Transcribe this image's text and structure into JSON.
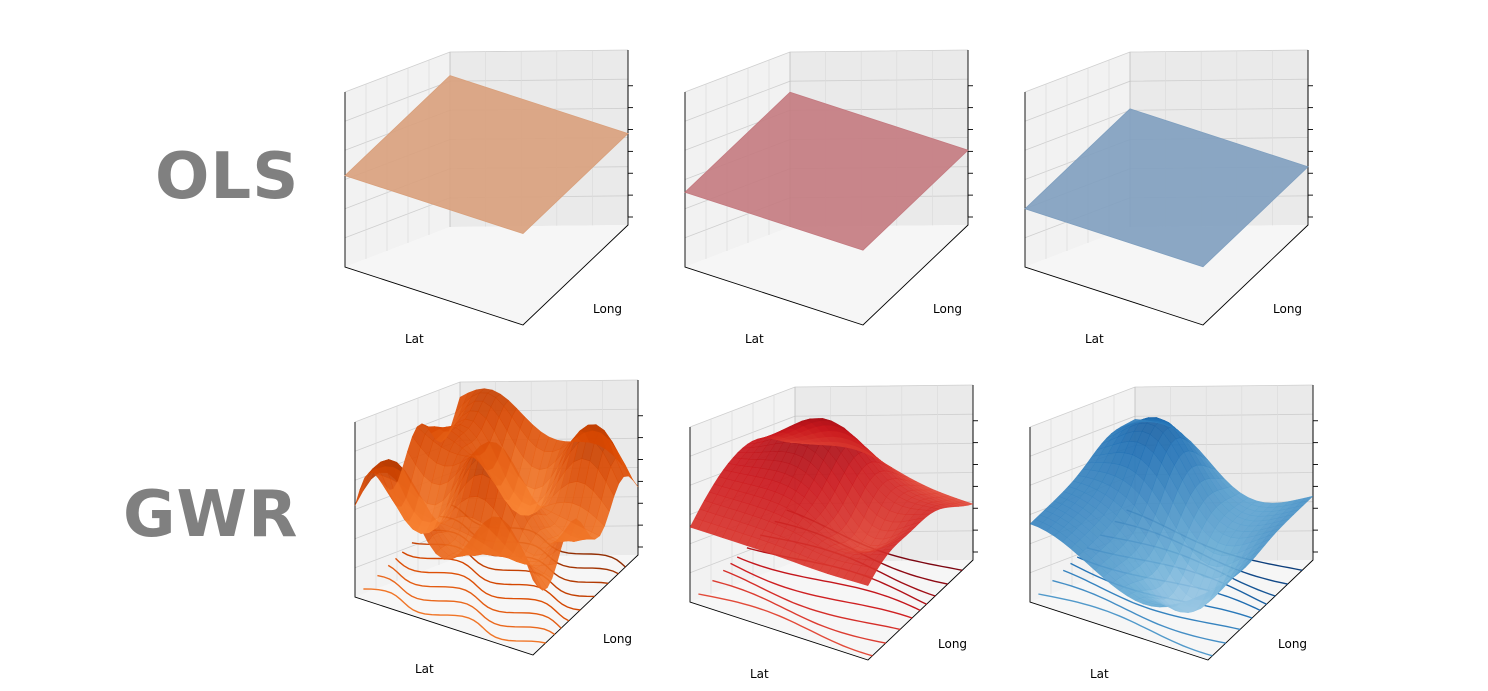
{
  "rows": {
    "ols": {
      "label": "OLS"
    },
    "gwr": {
      "label": "GWR"
    }
  },
  "chart_data": [
    {
      "type": "surface",
      "row": "OLS",
      "column": 1,
      "xlabel": "Lat",
      "ylabel": "Long",
      "surface": "flat",
      "z_level": 0.55,
      "colormap": "Oranges",
      "color": "#d9a07c",
      "zticks": 7,
      "grid": true
    },
    {
      "type": "surface",
      "row": "OLS",
      "column": 2,
      "xlabel": "Lat",
      "ylabel": "Long",
      "surface": "flat",
      "z_level": 0.45,
      "colormap": "Reds",
      "color": "#c47a80",
      "zticks": 7,
      "grid": true
    },
    {
      "type": "surface",
      "row": "OLS",
      "column": 3,
      "xlabel": "Lat",
      "ylabel": "Long",
      "surface": "flat",
      "z_level": 0.35,
      "colormap": "Blues",
      "color": "#7f9fbf",
      "zticks": 7,
      "grid": true
    },
    {
      "type": "surface",
      "row": "GWR",
      "column": 1,
      "xlabel": "Lat",
      "ylabel": "Long",
      "surface": "wavy",
      "contours_on_floor": true,
      "colormap": "Oranges",
      "zticks": 7,
      "grid": true
    },
    {
      "type": "surface",
      "row": "GWR",
      "column": 2,
      "xlabel": "Lat",
      "ylabel": "Long",
      "surface": "smooth",
      "contours_on_floor": true,
      "colormap": "Reds",
      "zticks": 7,
      "grid": true
    },
    {
      "type": "surface",
      "row": "GWR",
      "column": 3,
      "xlabel": "Lat",
      "ylabel": "Long",
      "surface": "smooth",
      "contours_on_floor": true,
      "colormap": "Blues",
      "zticks": 7,
      "grid": true
    }
  ]
}
